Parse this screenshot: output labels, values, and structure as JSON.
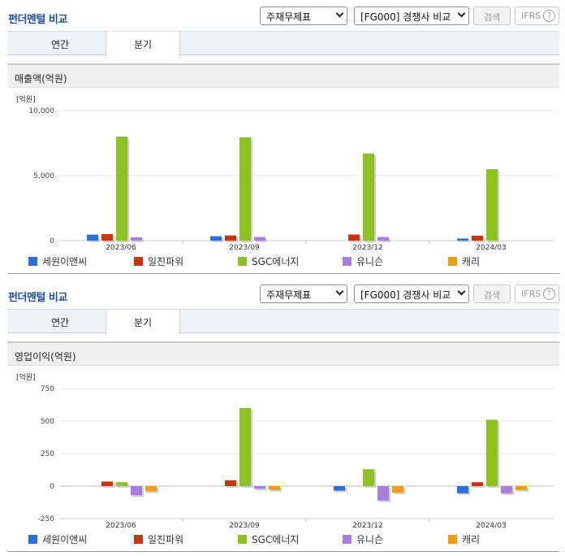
{
  "panels": [
    {
      "title": "펀더멘털 비교",
      "select1": "주재무제표",
      "select2": "[FG000] 경쟁사 비교",
      "search_label": "검색",
      "ifrs_label": "IFRS",
      "help_glyph": "?",
      "tabs": [
        {
          "label": "연간",
          "active": false
        },
        {
          "label": "분기",
          "active": true
        }
      ],
      "section_title": "매출액(억원)"
    },
    {
      "title": "펀더멘털 비교",
      "select1": "주재무제표",
      "select2": "[FG000] 경쟁사 비교",
      "search_label": "검색",
      "ifrs_label": "IFRS",
      "help_glyph": "?",
      "tabs": [
        {
          "label": "연간",
          "active": false
        },
        {
          "label": "분기",
          "active": true
        }
      ],
      "section_title": "영업이익(억원)"
    }
  ],
  "colors": {
    "세원이앤씨": "#2a6fdb",
    "일진파워": "#cc3311",
    "SGC에너지": "#8cc11f",
    "유니슨": "#a97ddb",
    "캐리": "#f39c12"
  },
  "chart_data": [
    {
      "type": "bar",
      "ylabel": "[억원]",
      "ylim": [
        0,
        10000
      ],
      "yticks": [
        0,
        5000,
        10000
      ],
      "ytick_labels": [
        "0",
        "5,000",
        "10,000"
      ],
      "categories": [
        "2023/06",
        "2023/09",
        "2023/12",
        "2024/03"
      ],
      "legend_position": "bottom",
      "series": [
        {
          "name": "세원이앤씨",
          "values": [
            460,
            340,
            0,
            160
          ]
        },
        {
          "name": "일진파워",
          "values": [
            500,
            400,
            470,
            380
          ]
        },
        {
          "name": "SGC에너지",
          "values": [
            8000,
            7950,
            6700,
            5500
          ]
        },
        {
          "name": "유니슨",
          "values": [
            260,
            280,
            280,
            0
          ]
        },
        {
          "name": "캐리",
          "values": [
            0,
            0,
            0,
            0
          ]
        }
      ]
    },
    {
      "type": "bar",
      "ylabel": "[억원]",
      "ylim": [
        -250,
        750
      ],
      "yticks": [
        -250,
        0,
        250,
        500,
        750
      ],
      "ytick_labels": [
        "-250",
        "0",
        "250",
        "500",
        "750"
      ],
      "categories": [
        "2023/06",
        "2023/09",
        "2023/12",
        "2024/03"
      ],
      "legend_position": "bottom",
      "series": [
        {
          "name": "세원이앤씨",
          "values": [
            0,
            0,
            -35,
            -55
          ]
        },
        {
          "name": "일진파워",
          "values": [
            35,
            45,
            0,
            30
          ]
        },
        {
          "name": "SGC에너지",
          "values": [
            30,
            600,
            130,
            510
          ]
        },
        {
          "name": "유니슨",
          "values": [
            -70,
            -20,
            -110,
            -55
          ]
        },
        {
          "name": "캐리",
          "values": [
            -40,
            -30,
            -50,
            -30
          ]
        }
      ]
    }
  ]
}
